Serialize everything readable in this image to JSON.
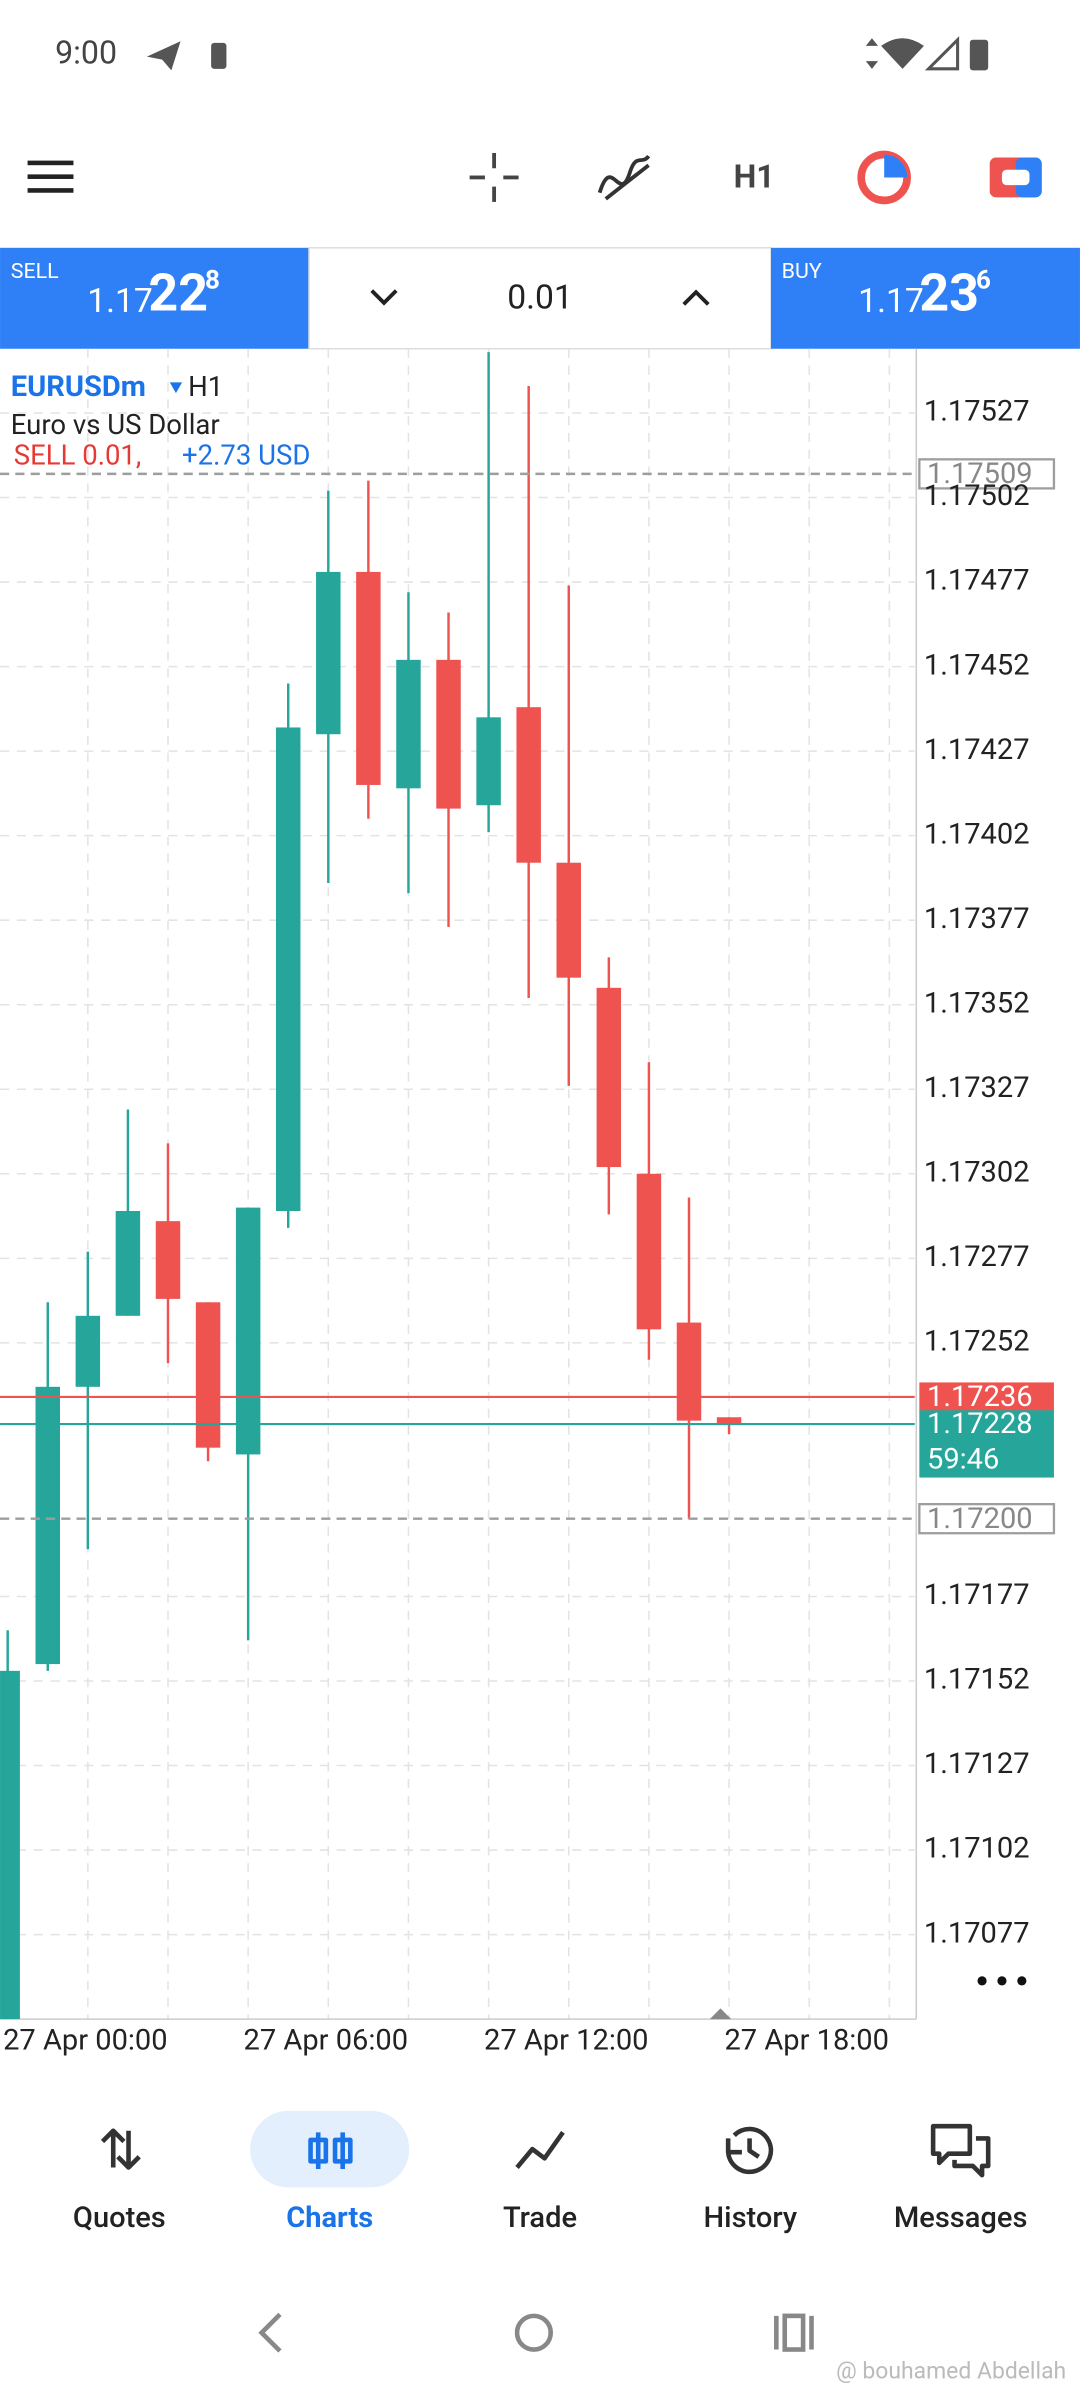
{
  "status_bar": {
    "time": "9:00"
  },
  "toolbar": {
    "timeframe": "H1"
  },
  "trade_panel": {
    "sell": {
      "label": "SELL",
      "price_prefix": "1.17",
      "price_pips": "22",
      "price_fraction": "8"
    },
    "volume": "0.01",
    "buy": {
      "label": "BUY",
      "price_prefix": "1.17",
      "price_pips": "23",
      "price_fraction": "6"
    }
  },
  "chart_data": {
    "type": "candlestick",
    "symbol": "EURUSDm",
    "timeframe": "H1",
    "description": "Euro vs US Dollar",
    "position": "SELL 0.01,",
    "profit": "+2.73 USD",
    "categories": [
      "27 Apr 00:00",
      null,
      null,
      null,
      null,
      null,
      "27 Apr 06:00",
      null,
      null,
      null,
      null,
      null,
      "27 Apr 12:00",
      null,
      null,
      null,
      null,
      null,
      "27 Apr 18:00"
    ],
    "open": [
      1.17052,
      1.17157,
      1.17239,
      1.1726,
      1.17288,
      1.17264,
      1.17219,
      1.17291,
      1.17432,
      1.1748,
      1.17416,
      1.17454,
      1.17411,
      1.1744,
      1.17394,
      1.17357,
      1.17302,
      1.17258,
      1.1723
    ],
    "high": [
      1.17167,
      1.17264,
      1.17279,
      1.17321,
      1.17311,
      1.17264,
      1.17292,
      1.17447,
      1.17504,
      1.17507,
      1.17474,
      1.17468,
      1.17545,
      1.17535,
      1.17476,
      1.17366,
      1.17335,
      1.17295,
      1.1723
    ],
    "low": [
      1.17052,
      1.17155,
      1.17191,
      1.1726,
      1.17246,
      1.17217,
      1.17164,
      1.17286,
      1.17388,
      1.17407,
      1.17385,
      1.17375,
      1.17403,
      1.17354,
      1.17328,
      1.1729,
      1.17247,
      1.172,
      1.17225
    ],
    "close": [
      1.17155,
      1.17239,
      1.1726,
      1.17291,
      1.17265,
      1.17221,
      1.17292,
      1.17434,
      1.1748,
      1.17417,
      1.17454,
      1.1741,
      1.17437,
      1.17394,
      1.1736,
      1.17304,
      1.17256,
      1.17229,
      1.17228
    ],
    "up_color": "#26a69a",
    "down_color": "#ef5350",
    "ylim": [
      1.17052,
      1.17546
    ],
    "yticks": [
      1.17527,
      1.17502,
      1.17477,
      1.17452,
      1.17427,
      1.17402,
      1.17377,
      1.17352,
      1.17327,
      1.17302,
      1.17277,
      1.17252,
      1.17177,
      1.17152,
      1.17127,
      1.17102,
      1.17077
    ],
    "grid": true,
    "levels": [
      {
        "value": 1.17509,
        "color": "#9e9e9e",
        "style": "dashed"
      },
      {
        "value": {
          "value": 1.172,
          "label": "1.17200"
        },
        "color": "#9e9e9e",
        "style": "dashed"
      },
      {
        "value": 1.17236,
        "color": "#ef5350",
        "style": "solid"
      },
      {
        "value": 1.17228,
        "color": "#26a69a",
        "style": "solid"
      }
    ],
    "countdown": "59:46"
  },
  "nav": {
    "items": [
      "Quotes",
      "Charts",
      "Trade",
      "History",
      "Messages"
    ]
  },
  "watermark": "@ bouhamed Abdellah"
}
